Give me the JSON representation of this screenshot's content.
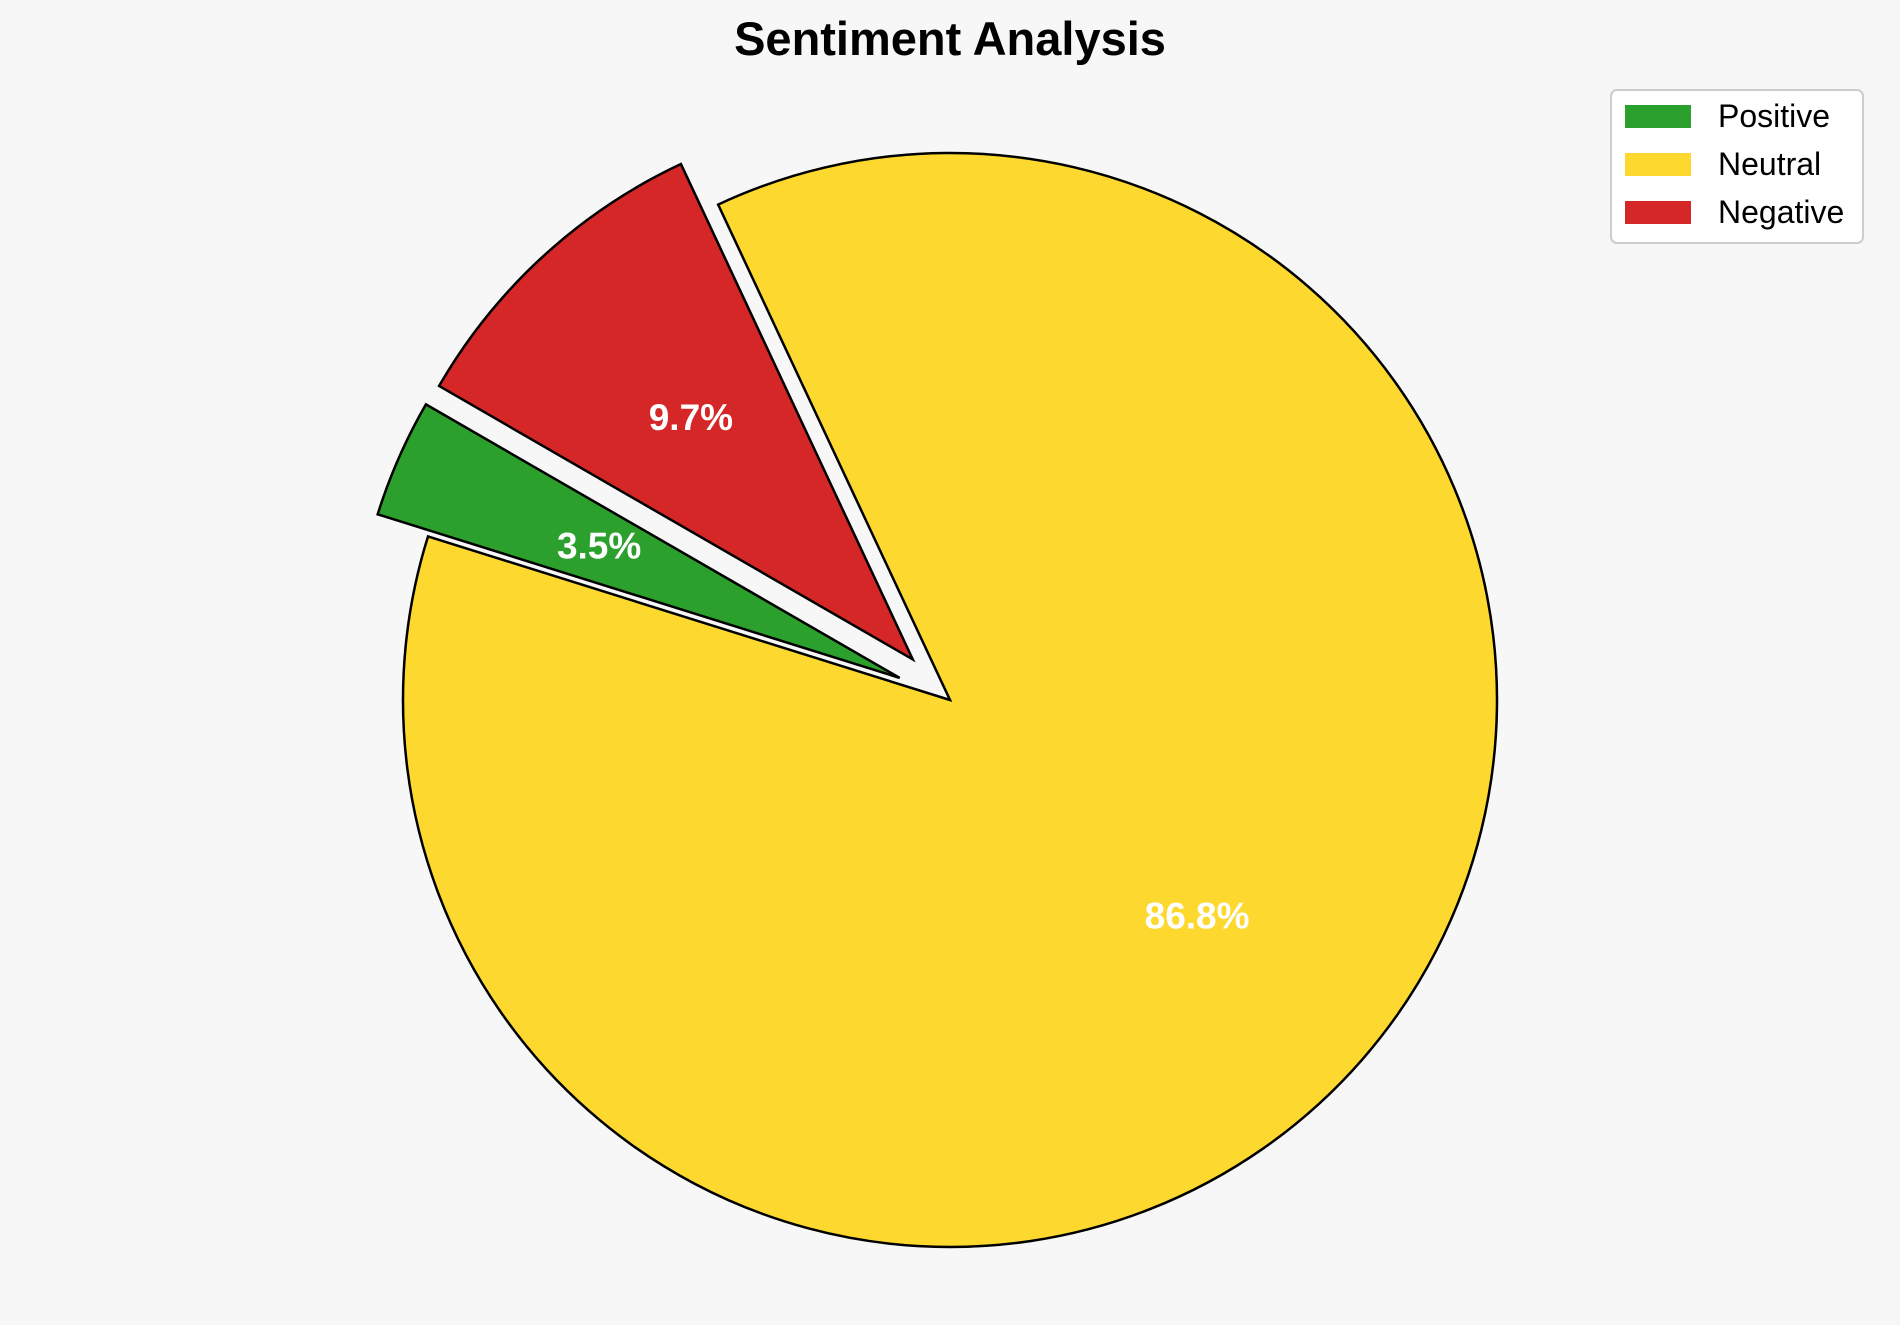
{
  "chart_data": {
    "type": "pie",
    "title": "Sentiment Analysis",
    "categories": [
      "Positive",
      "Neutral",
      "Negative"
    ],
    "values": [
      3.5,
      86.8,
      9.7
    ],
    "labels": [
      "3.5%",
      "86.8%",
      "9.7%"
    ],
    "colors": [
      "#2ca02c",
      "#fdd92f",
      "#d62728"
    ],
    "exploded": [
      true,
      false,
      true
    ],
    "start_angle_deg": 150,
    "direction": "counterclockwise",
    "legend": {
      "position": "top-right",
      "entries": [
        "Positive",
        "Neutral",
        "Negative"
      ]
    }
  }
}
